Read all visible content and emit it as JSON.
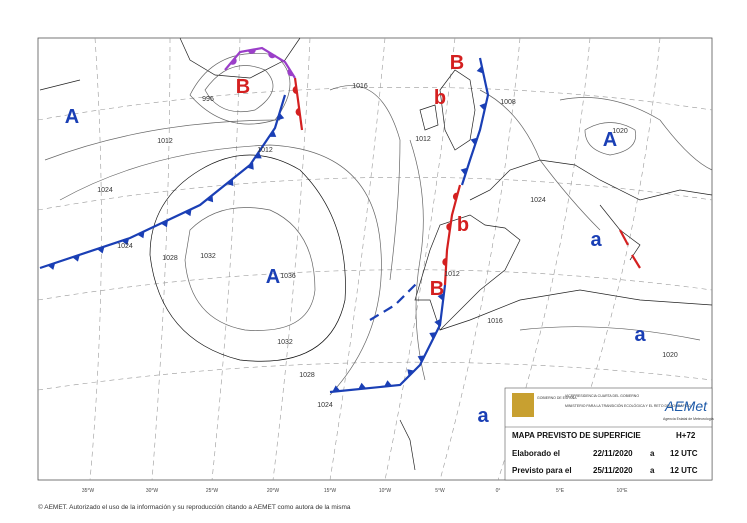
{
  "pressure_centers": [
    "A",
    "B",
    "B",
    "b",
    "A",
    "b",
    "A",
    "B",
    "a",
    "a",
    "a"
  ],
  "isobar_labels": [
    "1012",
    "1024",
    "1024",
    "1028",
    "1032",
    "1036",
    "1032",
    "1028",
    "1024",
    "1012",
    "996",
    "1016",
    "1012",
    "1012",
    "1008",
    "1020",
    "1024",
    "1016",
    "1020"
  ],
  "bottom_coordinates": [
    "35°W",
    "30°W",
    "25°W",
    "20°W",
    "15°W",
    "10°W",
    "5°W",
    "0°",
    "5°E",
    "10°E"
  ],
  "info_box": {
    "government": "GOBIERNO DE ESPAÑA",
    "vicepresidency": "VICEPRESIDENCIA CUARTA DEL GOBIERNO",
    "ministry": "MINISTERIO PARA LA TRANSICIÓN ECOLÓGICA Y EL RETO DEMOGRÁFICO",
    "agency_logo": "AEMet",
    "agency_name": "Agencia Estatal de Meteorología",
    "title": "MAPA PREVISTO DE SUPERFICIE",
    "step": "H+72",
    "issued": {
      "label": "Elaborado el",
      "date": "22/11/2020",
      "connector": "a",
      "time": "12 UTC"
    },
    "valid": {
      "label": "Previsto para el",
      "date": "25/11/2020",
      "connector": "a",
      "time": "12 UTC"
    }
  },
  "footer": "© AEMET. Autorizado el uso de la información y su reproducción citando a AEMET como autora de la misma"
}
